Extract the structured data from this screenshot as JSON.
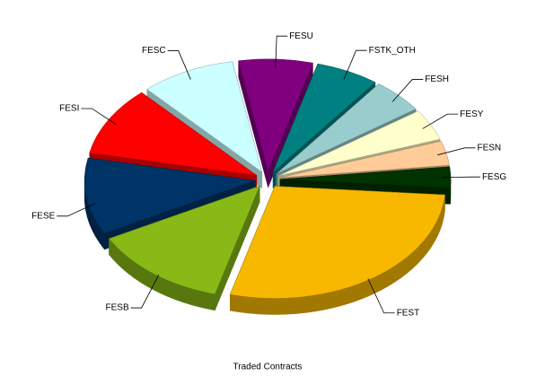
{
  "chart_data": {
    "type": "pie3d",
    "title": "Traded Contracts",
    "categories": [
      "FESU",
      "FSTK_OTH",
      "FESH",
      "FESY",
      "FESN",
      "FESG",
      "FEST",
      "FESB",
      "FESE",
      "FESI",
      "FESC"
    ],
    "values": [
      7,
      6,
      5,
      4.5,
      3.5,
      3,
      28,
      13,
      11,
      10,
      9
    ],
    "colors": [
      "#800080",
      "#008080",
      "#99cccc",
      "#ffffcc",
      "#ffcc99",
      "#003300",
      "#f8b800",
      "#88b917",
      "#003366",
      "#ff0000",
      "#ccffff"
    ],
    "start_angle": -100,
    "exploded": true
  }
}
